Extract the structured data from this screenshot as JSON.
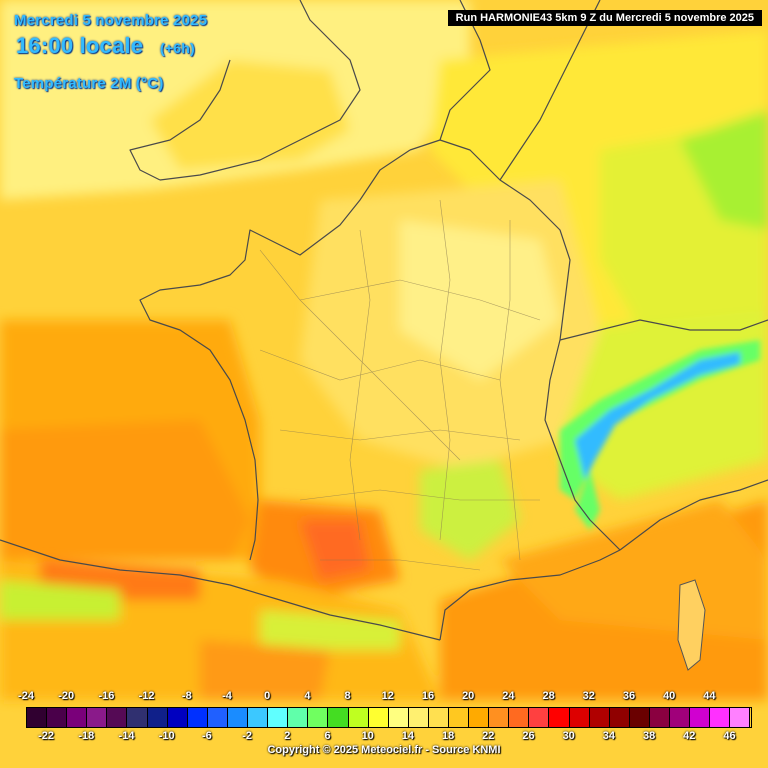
{
  "header": {
    "date": "Mercredi 5 novembre 2025",
    "time": "16:00 locale",
    "offset": "(+6h)",
    "variable": "Température 2M (°C)",
    "run": "Run HARMONIE43 5km 9 Z du Mercredi 5 novembre 2025"
  },
  "legend": {
    "upper_labels": [
      "-24",
      "-20",
      "-16",
      "-12",
      "-8",
      "-4",
      "0",
      "4",
      "8",
      "12",
      "16",
      "20",
      "24",
      "28",
      "32",
      "36",
      "40",
      "44"
    ],
    "lower_labels": [
      "-22",
      "-18",
      "-14",
      "-10",
      "-6",
      "-2",
      "2",
      "6",
      "10",
      "14",
      "18",
      "22",
      "26",
      "30",
      "34",
      "38",
      "42",
      "46"
    ],
    "colors": [
      "#300030",
      "#4a004a",
      "#7a007a",
      "#8a1a8a",
      "#550a55",
      "#303070",
      "#10208a",
      "#0000c0",
      "#0030ff",
      "#2060ff",
      "#1a8cff",
      "#3cc8ff",
      "#60ffff",
      "#60ffaa",
      "#70ff60",
      "#44dd22",
      "#bfff20",
      "#ffff30",
      "#ffff80",
      "#fff070",
      "#ffe050",
      "#ffc820",
      "#ffaa00",
      "#ff9020",
      "#ff6a20",
      "#ff4040",
      "#ff0000",
      "#dd0000",
      "#b00000",
      "#900000",
      "#6a0000",
      "#8a0040",
      "#a0007a",
      "#d000d0",
      "#ff30ff",
      "#ff80ff"
    ]
  },
  "copyright": "Copyright © 2025 Meteociel.fr - Source KNMI"
}
